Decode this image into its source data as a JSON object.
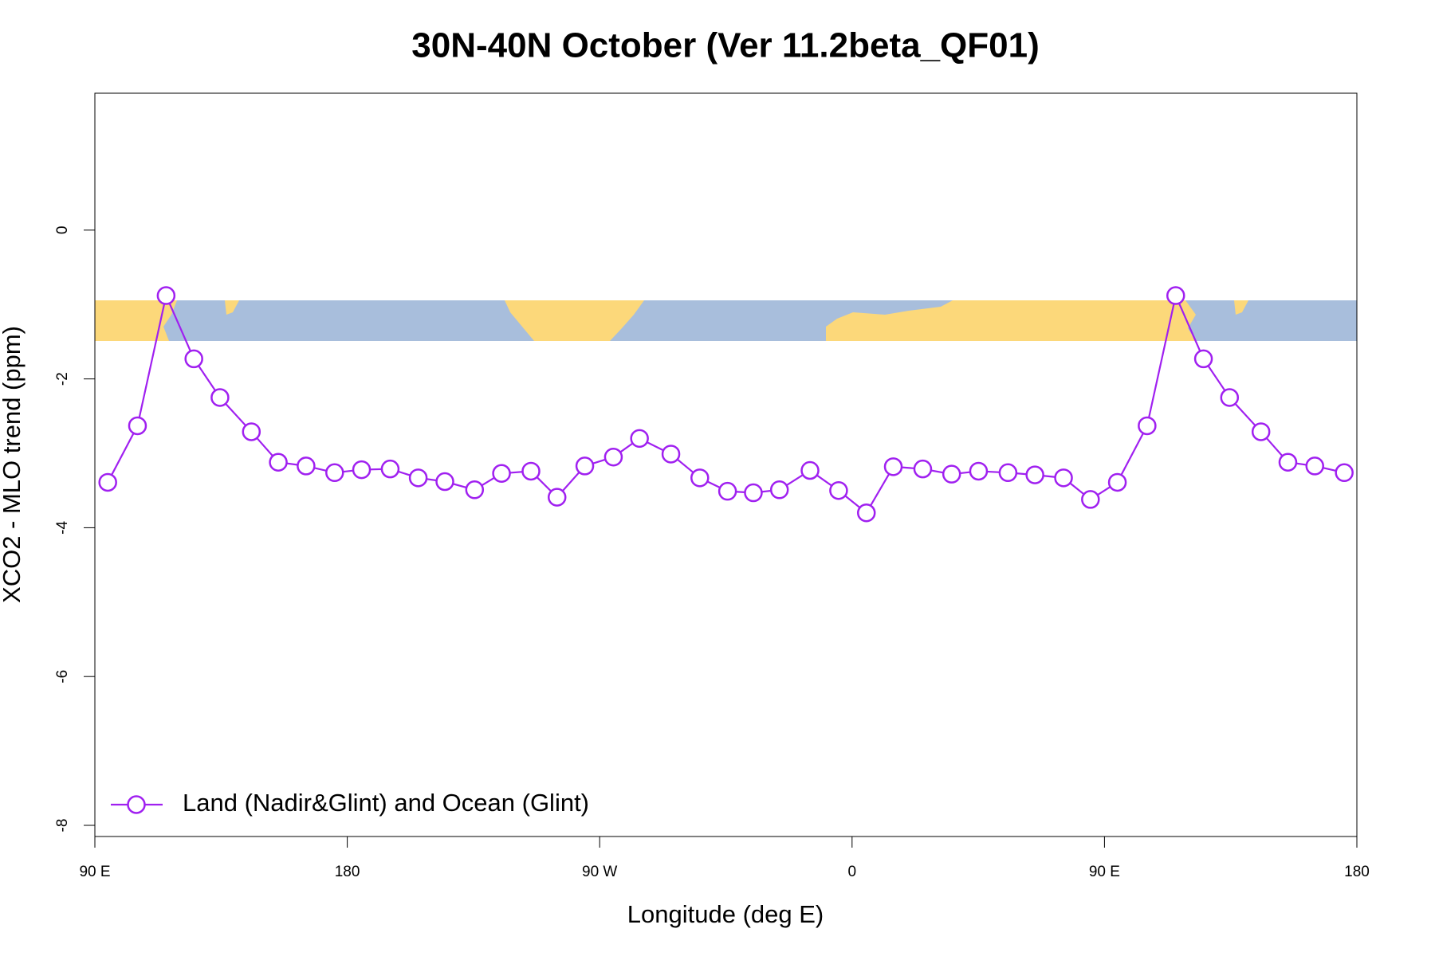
{
  "chart_data": {
    "type": "line",
    "title": "30N-40N October (Ver 11.2beta_QF01)",
    "x_label": "Longitude (deg E)",
    "y_label": "XCO2 - MLO trend (ppm)",
    "xlim": [
      90,
      540
    ],
    "ylim": [
      -8.15,
      1.84
    ],
    "xticks": [
      {
        "value": 90,
        "label": "90 E"
      },
      {
        "value": 180,
        "label": "180"
      },
      {
        "value": 270,
        "label": "90 W"
      },
      {
        "value": 360,
        "label": "0"
      },
      {
        "value": 450,
        "label": "90 E"
      },
      {
        "value": 540,
        "label": "180"
      }
    ],
    "yticks": [
      -8,
      -6,
      -4,
      -2,
      0
    ],
    "legend": "bottomleft",
    "x": [
      94.6,
      105.2,
      115.4,
      125.3,
      134.6,
      145.8,
      155.4,
      165.3,
      175.5,
      185.1,
      195.3,
      205.3,
      214.8,
      225.4,
      235.0,
      245.5,
      254.8,
      264.7,
      274.9,
      284.2,
      295.4,
      305.7,
      315.6,
      324.8,
      334.1,
      345.0,
      355.2,
      365.1,
      374.7,
      385.2,
      395.5,
      405.1,
      415.6,
      425.2,
      435.4,
      445.0,
      454.6,
      465.2,
      475.4,
      485.3,
      494.6,
      505.8,
      515.4,
      525.0,
      535.5
    ],
    "series": [
      {
        "name": "Land (Nadir&Glint) and Ocean (Glint)",
        "color": "#a020f0",
        "values": [
          -3.39,
          -2.63,
          -0.88,
          -1.73,
          -2.25,
          -2.71,
          -3.12,
          -3.17,
          -3.26,
          -3.22,
          -3.21,
          -3.33,
          -3.38,
          -3.49,
          -3.27,
          -3.24,
          -3.59,
          -3.17,
          -3.05,
          -2.8,
          -3.01,
          -3.33,
          -3.51,
          -3.53,
          -3.49,
          -3.23,
          -3.5,
          -3.8,
          -3.18,
          -3.21,
          -3.28,
          -3.24,
          -3.26,
          -3.29,
          -3.33,
          -3.62,
          -3.39,
          -2.63,
          -0.88,
          -1.73,
          -2.25,
          -2.71,
          -3.12,
          -3.17,
          -3.26
        ]
      }
    ]
  }
}
